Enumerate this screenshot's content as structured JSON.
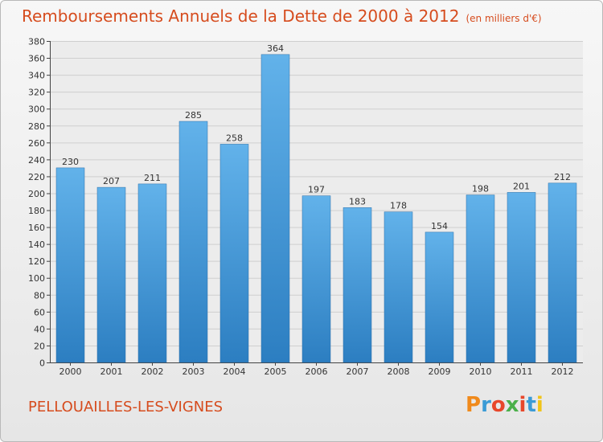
{
  "header": {
    "title": "Remboursements Annuels de la Dette de 2000 à 2012",
    "unit": "(en milliers d'€)"
  },
  "footer": {
    "commune": "PELLOUAILLES-LES-VIGNES",
    "logo_text": "Proxiti"
  },
  "colors": {
    "title": "#d64c1e",
    "bar_top": "#62b2ea",
    "bar_bottom": "#2c7ec1"
  },
  "chart_data": {
    "type": "bar",
    "title": "Remboursements Annuels de la Dette de 2000 à 2012",
    "xlabel": "",
    "ylabel": "",
    "categories": [
      "2000",
      "2001",
      "2002",
      "2003",
      "2004",
      "2005",
      "2006",
      "2007",
      "2008",
      "2009",
      "2010",
      "2011",
      "2012"
    ],
    "values": [
      230,
      207,
      211,
      285,
      258,
      364,
      197,
      183,
      178,
      154,
      198,
      201,
      212
    ],
    "ylim": [
      0,
      380
    ],
    "yticks": [
      0,
      20,
      40,
      60,
      80,
      100,
      120,
      140,
      160,
      180,
      200,
      220,
      240,
      260,
      280,
      300,
      320,
      340,
      360,
      380
    ],
    "grid": true
  }
}
